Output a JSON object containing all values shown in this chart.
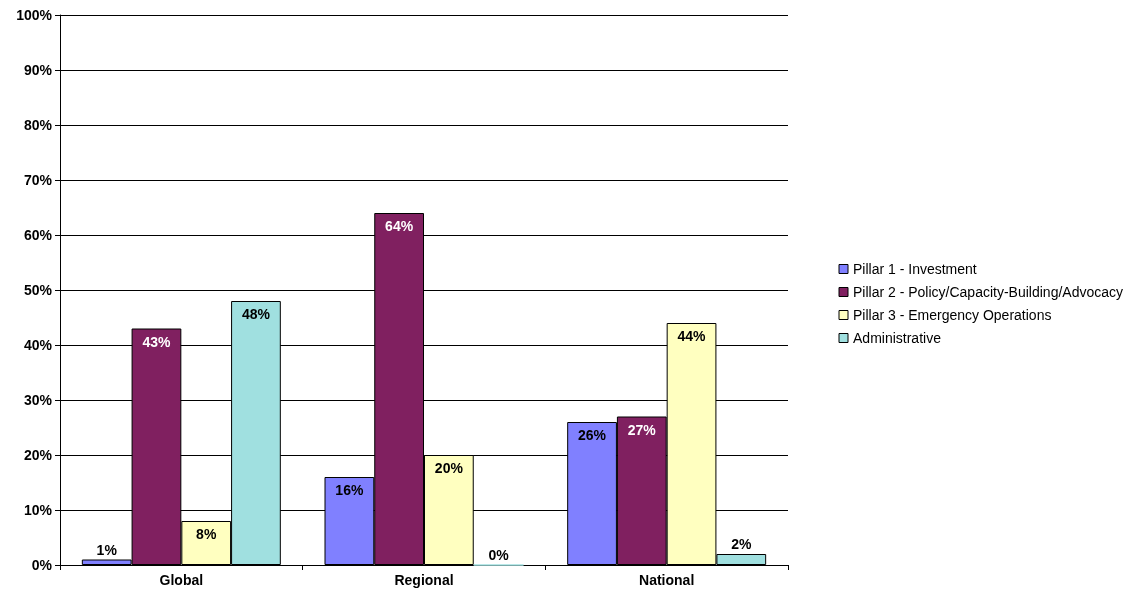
{
  "chart_data": {
    "type": "bar",
    "categories": [
      "Global",
      "Regional",
      "National"
    ],
    "series": [
      {
        "name": "Pillar 1 - Investment",
        "color": "#8080ff",
        "values": [
          1,
          16,
          26
        ],
        "value_labels": [
          "1%",
          "16%",
          "26%"
        ]
      },
      {
        "name": "Pillar 2 - Policy/Capacity-Building/Advocacy",
        "color": "#802060",
        "values": [
          43,
          64,
          27
        ],
        "value_labels": [
          "43%",
          "64%",
          "27%"
        ]
      },
      {
        "name": "Pillar 3 - Emergency Operations",
        "color": "#ffffc0",
        "values": [
          8,
          20,
          44
        ],
        "value_labels": [
          "8%",
          "20%",
          "44%"
        ]
      },
      {
        "name": "Administrative",
        "color": "#a0e0e0",
        "values": [
          48,
          0,
          2
        ],
        "value_labels": [
          "48%",
          "0%",
          "2%"
        ]
      }
    ],
    "ylim": [
      0,
      100
    ],
    "yticks": [
      {
        "value": 0,
        "label": "0%"
      },
      {
        "value": 10,
        "label": "10%"
      },
      {
        "value": 20,
        "label": "20%"
      },
      {
        "value": 30,
        "label": "30%"
      },
      {
        "value": 40,
        "label": "40%"
      },
      {
        "value": 50,
        "label": "50%"
      },
      {
        "value": 60,
        "label": "60%"
      },
      {
        "value": 70,
        "label": "70%"
      },
      {
        "value": 80,
        "label": "80%"
      },
      {
        "value": 90,
        "label": "90%"
      },
      {
        "value": 100,
        "label": "100%"
      }
    ],
    "grid": "y",
    "legend": "right"
  }
}
